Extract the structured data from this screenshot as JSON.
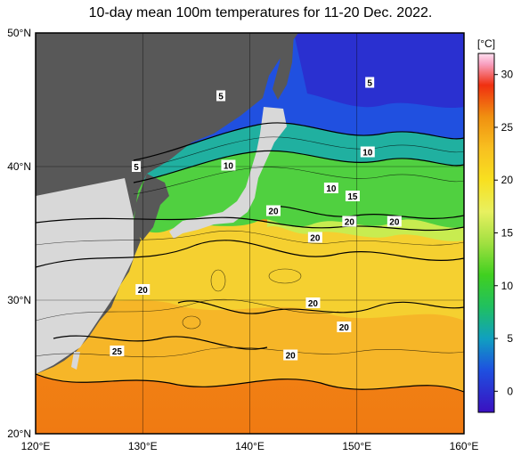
{
  "title": "10-day mean 100m temperatures for 11-20 Dec. 2022.",
  "map": {
    "lon_ticks": [
      "120°E",
      "130°E",
      "140°E",
      "150°E",
      "160°E"
    ],
    "lat_ticks": [
      "50°N",
      "40°N",
      "30°N",
      "20°N"
    ],
    "lon_range": [
      120,
      160
    ],
    "lat_range": [
      20,
      50
    ],
    "land_color": "#585858",
    "other_land_color": "#d8d8d8",
    "grid": true
  },
  "colorbar": {
    "unit": "[°C]",
    "ticks": [
      "30",
      "25",
      "20",
      "15",
      "10",
      "5",
      "0"
    ],
    "tick_values": [
      30,
      25,
      20,
      15,
      10,
      5,
      0
    ],
    "range": [
      -2,
      32
    ],
    "stops": [
      {
        "value": -2,
        "color": "#3a10c0"
      },
      {
        "value": 2,
        "color": "#1e50e0"
      },
      {
        "value": 5,
        "color": "#10a0c0"
      },
      {
        "value": 8,
        "color": "#20c060"
      },
      {
        "value": 11,
        "color": "#40d020"
      },
      {
        "value": 14,
        "color": "#a0e040"
      },
      {
        "value": 17,
        "color": "#e8f060"
      },
      {
        "value": 20,
        "color": "#f8e020"
      },
      {
        "value": 23,
        "color": "#f8c020"
      },
      {
        "value": 26,
        "color": "#f09010"
      },
      {
        "value": 29,
        "color": "#f03010"
      },
      {
        "value": 31,
        "color": "#f8a0c0"
      },
      {
        "value": 32,
        "color": "#ffe0f0"
      }
    ]
  },
  "isotherm_labels": [
    {
      "text": "5",
      "lon": 137.3,
      "lat": 45.3
    },
    {
      "text": "5",
      "lon": 151.2,
      "lat": 46.3
    },
    {
      "text": "5",
      "lon": 129.4,
      "lat": 40.0
    },
    {
      "text": "10",
      "lon": 138.0,
      "lat": 40.1
    },
    {
      "text": "10",
      "lon": 151.0,
      "lat": 41.1
    },
    {
      "text": "10",
      "lon": 147.6,
      "lat": 38.4
    },
    {
      "text": "15",
      "lon": 149.6,
      "lat": 37.8
    },
    {
      "text": "20",
      "lon": 142.2,
      "lat": 36.7
    },
    {
      "text": "20",
      "lon": 149.3,
      "lat": 35.9
    },
    {
      "text": "20",
      "lon": 153.5,
      "lat": 35.9
    },
    {
      "text": "20",
      "lon": 146.1,
      "lat": 34.7
    },
    {
      "text": "20",
      "lon": 130.0,
      "lat": 30.8
    },
    {
      "text": "20",
      "lon": 145.9,
      "lat": 29.8
    },
    {
      "text": "20",
      "lon": 148.8,
      "lat": 28.0
    },
    {
      "text": "20",
      "lon": 143.8,
      "lat": 25.9
    },
    {
      "text": "25",
      "lon": 127.6,
      "lat": 26.2
    }
  ]
}
